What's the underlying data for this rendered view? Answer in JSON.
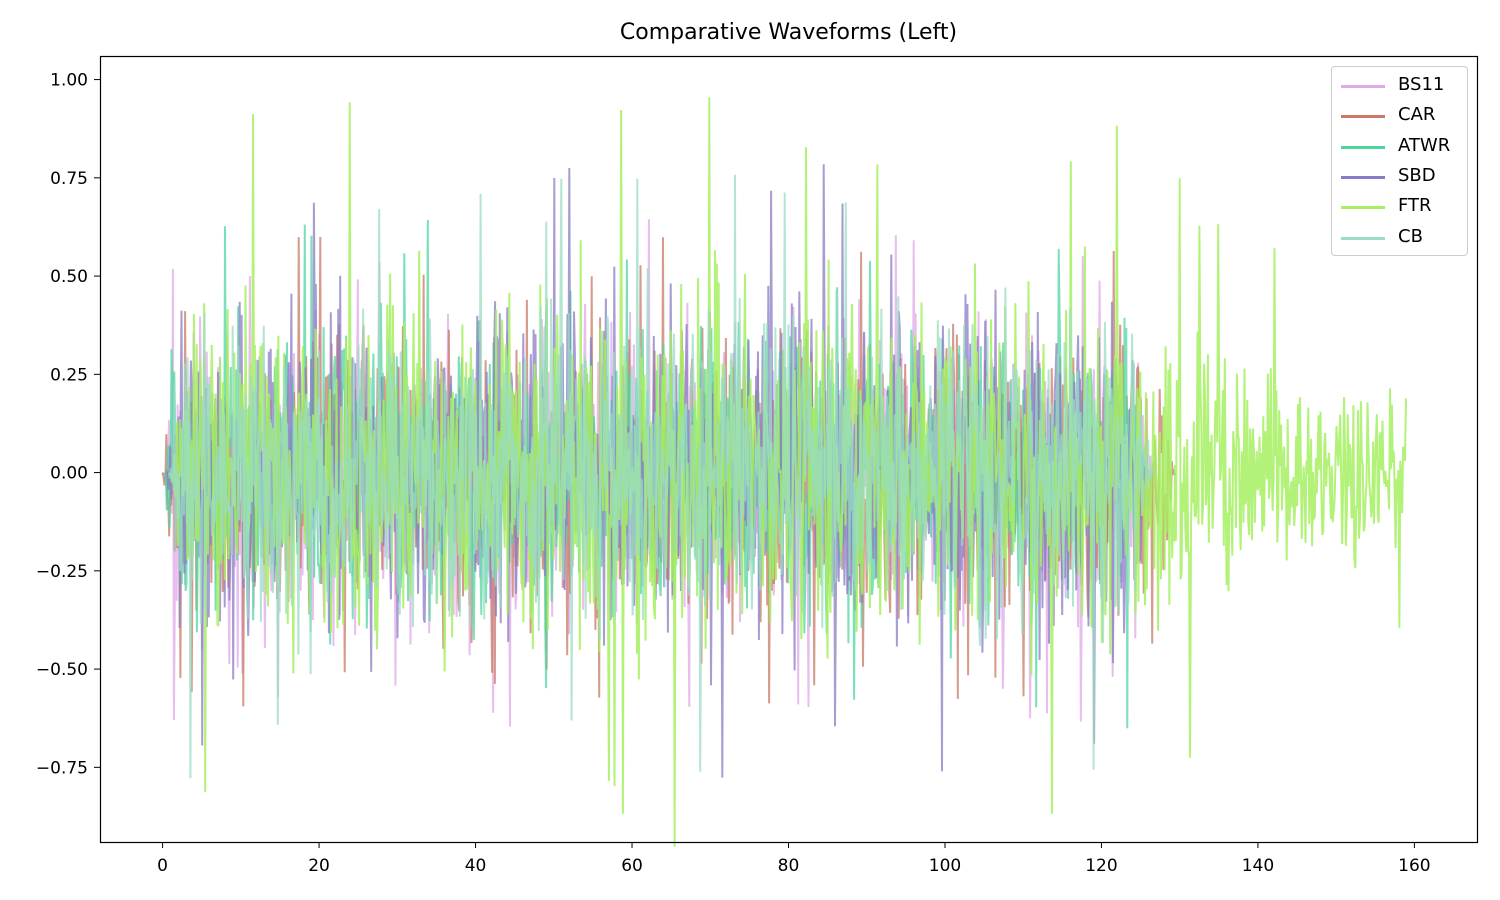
{
  "chart_data": {
    "type": "line",
    "title": "Comparative Waveforms (Left)",
    "xlabel": "",
    "ylabel": "",
    "xlim": [
      -8,
      168
    ],
    "ylim": [
      -0.94,
      1.06
    ],
    "xticks": [
      0,
      20,
      40,
      60,
      80,
      100,
      120,
      140,
      160
    ],
    "yticks": [
      1.0,
      0.75,
      0.5,
      0.25,
      0.0,
      -0.25,
      -0.5,
      -0.75
    ],
    "grid": false,
    "legend_position": "upper right",
    "series": [
      {
        "name": "BS11",
        "color": "#e0a8e8",
        "start": 0.0,
        "end": 126.5,
        "amp": 0.55,
        "peak": 0.66
      },
      {
        "name": "CAR",
        "color": "#c87a66",
        "start": 0.0,
        "end": 129.5,
        "amp": 0.5,
        "peak": 0.6
      },
      {
        "name": "ATWR",
        "color": "#4fd6a0",
        "start": 0.3,
        "end": 125.8,
        "amp": 0.52,
        "peak": 0.66
      },
      {
        "name": "SBD",
        "color": "#8a7cc4",
        "start": 0.5,
        "end": 126.0,
        "amp": 0.58,
        "peak": 0.79
      },
      {
        "name": "FTR",
        "color": "#a6f060",
        "start": 1.0,
        "end": 159.0,
        "amp": 0.62,
        "peak": 0.97
      },
      {
        "name": "CB",
        "color": "#9adcc4",
        "start": 0.8,
        "end": 126.8,
        "amp": 0.55,
        "peak": 0.78
      }
    ]
  }
}
